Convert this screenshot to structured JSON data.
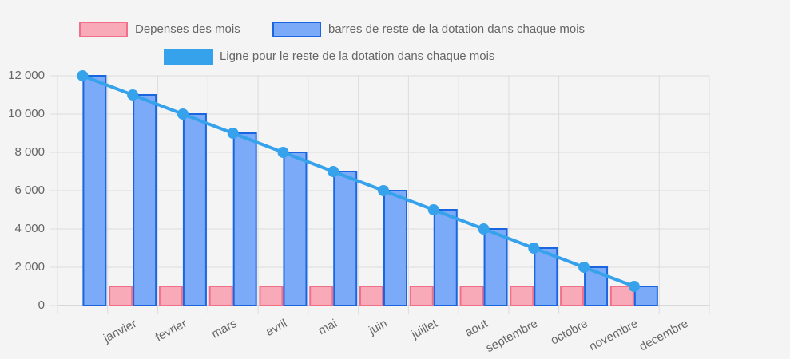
{
  "chart_data": {
    "type": "bar_line",
    "categories": [
      null,
      "janvier",
      "fevrier",
      "mars",
      "avril",
      "mai",
      "juin",
      "juillet",
      "aout",
      "septembre",
      "octobre",
      "novembre",
      "decembre"
    ],
    "series": [
      {
        "name": "Depenses des mois",
        "type": "bar",
        "color": "#f9aab9",
        "border": "#f0708a",
        "values": [
          null,
          1000,
          1000,
          1000,
          1000,
          1000,
          1000,
          1000,
          1000,
          1000,
          1000,
          1000,
          null
        ]
      },
      {
        "name": "barres de reste de la dotation dans chaque mois",
        "type": "bar",
        "color": "#7aaaf8",
        "border": "#1a66e0",
        "values": [
          12000,
          11000,
          10000,
          9000,
          8000,
          7000,
          6000,
          5000,
          4000,
          3000,
          2000,
          1000,
          null
        ]
      },
      {
        "name": "Ligne pour le reste de la dotation dans chaque mois",
        "type": "line",
        "color": "#36a2eb",
        "values": [
          12000,
          11000,
          10000,
          9000,
          8000,
          7000,
          6000,
          5000,
          4000,
          3000,
          2000,
          1000,
          null
        ]
      }
    ],
    "ylim": [
      0,
      12000
    ],
    "yticks": [
      0,
      {
        "value": 2000,
        "label": "2 000"
      },
      {
        "value": 4000,
        "label": "4 000"
      },
      {
        "value": 6000,
        "label": "6 000"
      },
      {
        "value": 8000,
        "label": "8 000"
      },
      {
        "value": 10000,
        "label": "10 000"
      },
      {
        "value": 12000,
        "label": "12 000"
      }
    ],
    "grid": true,
    "legend": "top"
  }
}
